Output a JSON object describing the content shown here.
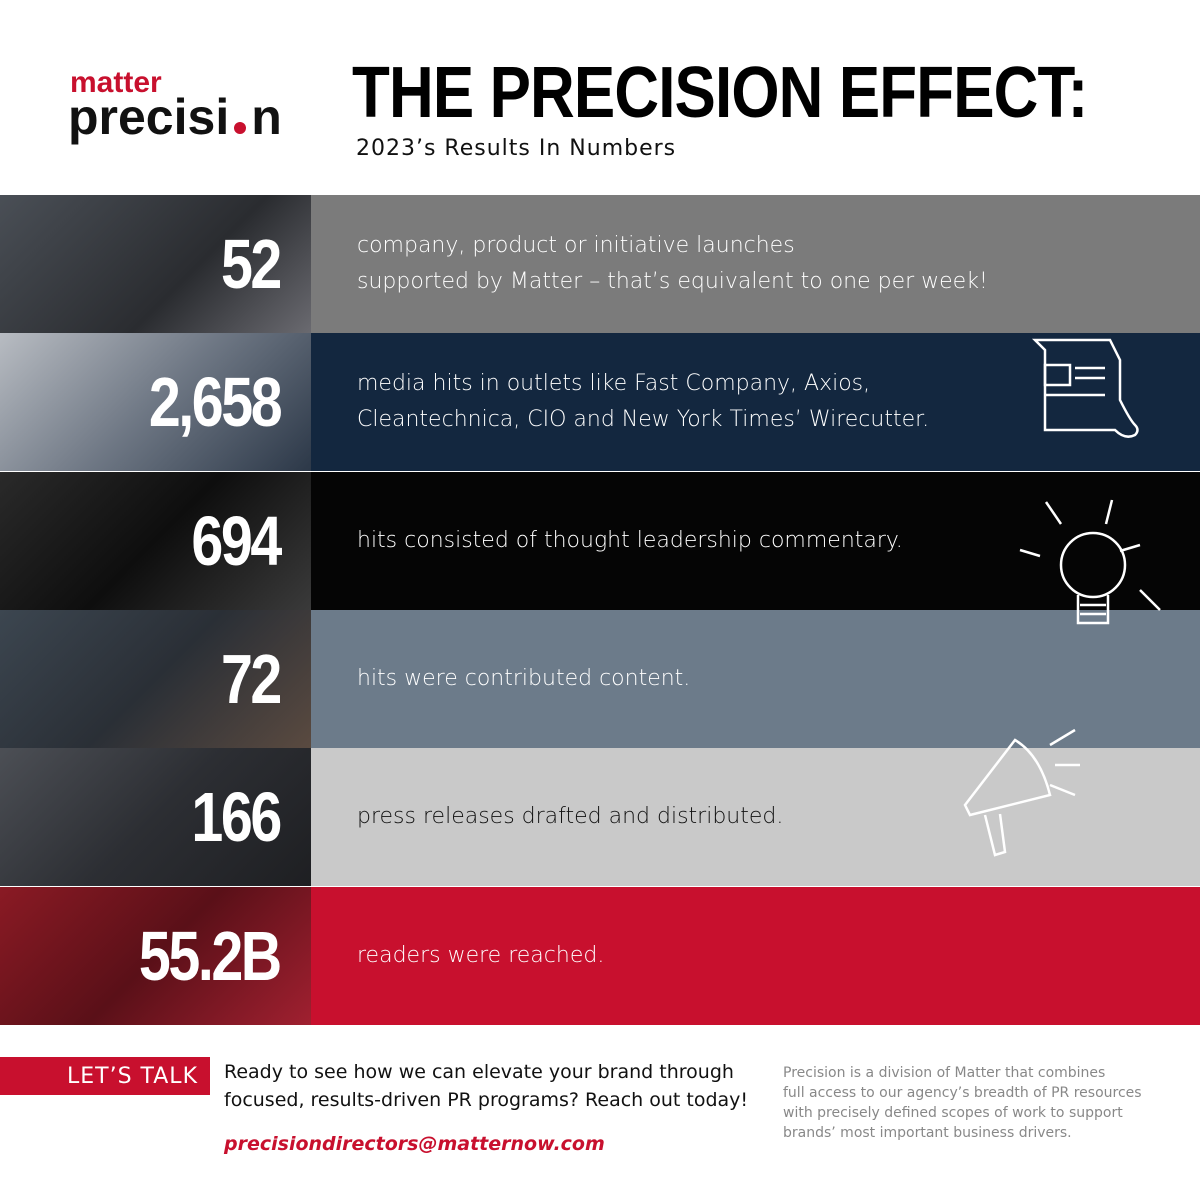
{
  "logo": {
    "top": "matter",
    "bottom_start": "precisi",
    "bottom_end": "n"
  },
  "header": {
    "title": "THE PRECISION EFFECT:",
    "subtitle": "2023’s Results In Numbers"
  },
  "rows": [
    {
      "number": "52",
      "lines": [
        "company, product or initiative launches",
        "supported by Matter – that’s equivalent to one per week!"
      ]
    },
    {
      "number": "2,658",
      "lines": [
        "media hits in outlets like Fast Company, Axios,",
        "Cleantechnica, CIO and New York Times’ Wirecutter."
      ]
    },
    {
      "number": "694",
      "lines": [
        "hits consisted of thought leadership commentary."
      ]
    },
    {
      "number": "72",
      "lines": [
        "hits were contributed content."
      ]
    },
    {
      "number": "166",
      "lines": [
        "press releases drafted and distributed."
      ]
    },
    {
      "number": "55.2B",
      "lines": [
        "readers were reached."
      ]
    }
  ],
  "footer": {
    "cta": "LET’S TALK",
    "message": [
      "Ready to see how we can elevate your brand through",
      "focused, results-driven PR programs? Reach out today!"
    ],
    "email": "precisiondirectors@matternow.com",
    "about": [
      "Precision is a division of Matter that combines",
      "full access to our agency’s breadth of PR resources",
      "with precisely defined scopes of work to support",
      "brands’ most important business drivers."
    ]
  }
}
